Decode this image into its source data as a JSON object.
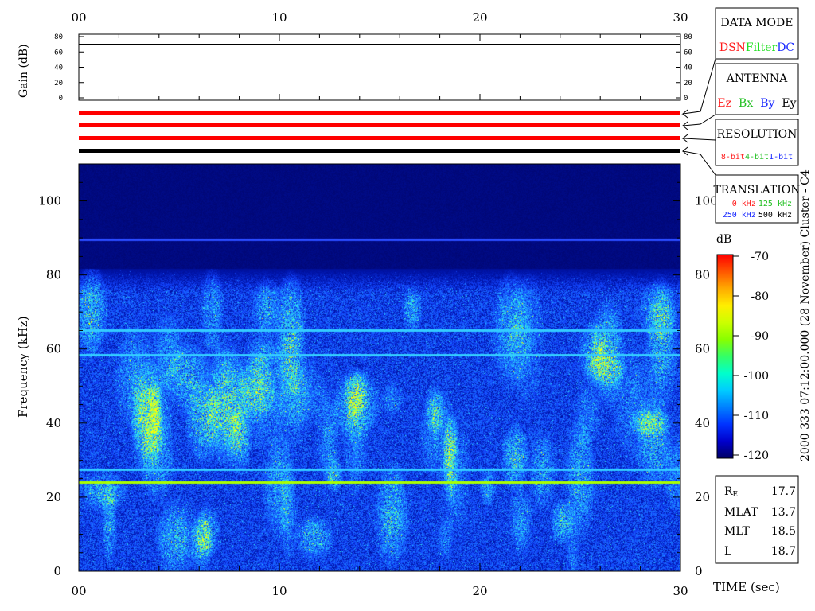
{
  "title": "2000 333 07:12:00.000 (28 November)   Cluster - C4",
  "data_mode": {
    "title": "DATA MODE",
    "items": [
      {
        "label": "DSN",
        "color": "#ff1a1a"
      },
      {
        "label": "Filter",
        "color": "#22e022"
      },
      {
        "label": "DC",
        "color": "#1a2aff"
      }
    ]
  },
  "antenna": {
    "title": "ANTENNA",
    "items": [
      {
        "label": "Ez",
        "color": "#ff1a1a"
      },
      {
        "label": "Bx",
        "color": "#22c022"
      },
      {
        "label": "By",
        "color": "#1a2aff"
      },
      {
        "label": "Ey",
        "color": "#000000"
      }
    ]
  },
  "resolution": {
    "title": "RESOLUTION",
    "items": [
      {
        "label": "8-bit",
        "color": "#ff1a1a"
      },
      {
        "label": "4-bit",
        "color": "#22c022"
      },
      {
        "label": "1-bit",
        "color": "#1a2aff"
      }
    ]
  },
  "translation": {
    "title": "TRANSLATION",
    "items": [
      {
        "label": "0 kHz",
        "color": "#ff1a1a"
      },
      {
        "label": "125 kHz",
        "color": "#22c022"
      },
      {
        "label": "250 kHz",
        "color": "#1a2aff"
      },
      {
        "label": "500 kHz",
        "color": "#000000"
      }
    ]
  },
  "orbit": {
    "items": [
      {
        "label": "R",
        "sub": "E",
        "value": "17.7"
      },
      {
        "label": "MLAT",
        "value": "13.7"
      },
      {
        "label": "MLT",
        "value": "18.5"
      },
      {
        "label": "L",
        "value": "18.7"
      }
    ]
  },
  "colorbar": {
    "unit": "dB",
    "ticks": [
      "-70",
      "-80",
      "-90",
      "-100",
      "-110",
      "-120"
    ],
    "colors": [
      "#000066",
      "#0000cc",
      "#0033ff",
      "#0080ff",
      "#00ccff",
      "#00ffcc",
      "#33ff66",
      "#88ff00",
      "#ccff00",
      "#ffee00",
      "#ffaa00",
      "#ff5500",
      "#ff0000"
    ]
  },
  "status_bars": [
    {
      "color": "#ff0000"
    },
    {
      "color": "#ff0000"
    },
    {
      "color": "#ff0000"
    },
    {
      "color": "#000000"
    }
  ],
  "chart_data": [
    {
      "type": "line",
      "ylabel": "Gain (dB)",
      "x": [
        0,
        30
      ],
      "y": [
        70,
        70
      ],
      "xlim": [
        0,
        30
      ],
      "ylim": [
        0,
        80
      ],
      "ytick_labels": [
        "0",
        "20",
        "40",
        "60",
        "80"
      ],
      "xtick_labels": [
        "00",
        "10",
        "20",
        "30"
      ]
    },
    {
      "type": "heatmap",
      "xlabel": "TIME (sec)",
      "ylabel": "Frequency (kHz)",
      "xlim": [
        0,
        30
      ],
      "ylim": [
        0,
        110
      ],
      "xtick_labels": [
        "00",
        "10",
        "20",
        "30"
      ],
      "ytick_labels": [
        "0",
        "20",
        "40",
        "60",
        "80",
        "100"
      ],
      "zlim": [
        -120,
        -70
      ],
      "zunit": "dB",
      "cutoff_frequency_khz": 80,
      "constant_lines_khz": [
        {
          "f": 24,
          "color": "#aaff00"
        },
        {
          "f": 27.5,
          "color": "#33ccff"
        },
        {
          "f": 58.5,
          "color": "#33ccff"
        },
        {
          "f": 65,
          "color": "#33ccff"
        },
        {
          "f": 89.5,
          "color": "#2a4aff"
        }
      ]
    }
  ]
}
